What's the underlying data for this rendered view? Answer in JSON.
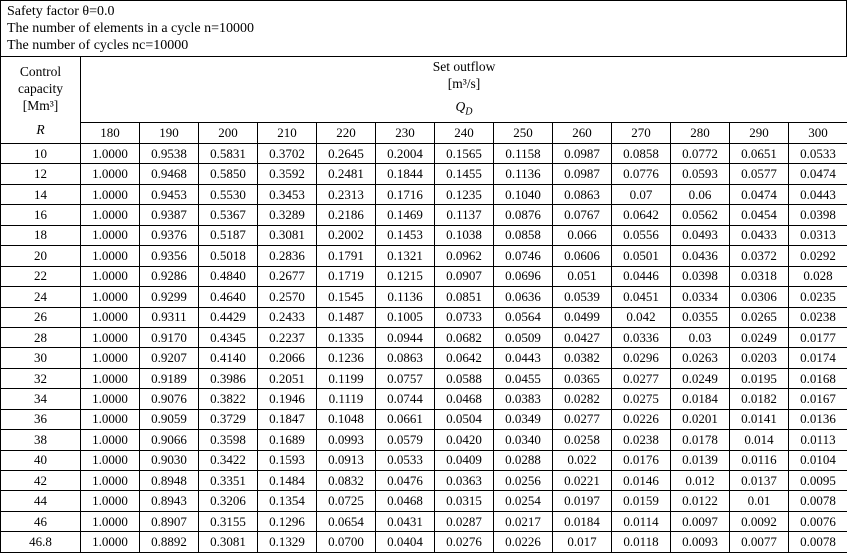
{
  "top": {
    "lines": [
      "Safety factor θ=0.0",
      "The number of elements in a cycle n=10000",
      "The number of cycles nc=10000"
    ]
  },
  "table": {
    "corner": {
      "lines": [
        "Control",
        "capacity",
        "[Mm³]"
      ],
      "symbol": "R"
    },
    "group_header": {
      "lines": [
        "Set outflow",
        "[m³/s]"
      ],
      "q": "Q",
      "q_sub": "D"
    },
    "columns": [
      "180",
      "190",
      "200",
      "210",
      "220",
      "230",
      "240",
      "250",
      "260",
      "270",
      "280",
      "290",
      "300"
    ],
    "rows": [
      {
        "R": "10",
        "values": [
          "1.0000",
          "0.9538",
          "0.5831",
          "0.3702",
          "0.2645",
          "0.2004",
          "0.1565",
          "0.1158",
          "0.0987",
          "0.0858",
          "0.0772",
          "0.0651",
          "0.0533"
        ]
      },
      {
        "R": "12",
        "values": [
          "1.0000",
          "0.9468",
          "0.5850",
          "0.3592",
          "0.2481",
          "0.1844",
          "0.1455",
          "0.1136",
          "0.0987",
          "0.0776",
          "0.0593",
          "0.0577",
          "0.0474"
        ]
      },
      {
        "R": "14",
        "values": [
          "1.0000",
          "0.9453",
          "0.5530",
          "0.3453",
          "0.2313",
          "0.1716",
          "0.1235",
          "0.1040",
          "0.0863",
          "0.07",
          "0.06",
          "0.0474",
          "0.0443"
        ]
      },
      {
        "R": "16",
        "values": [
          "1.0000",
          "0.9387",
          "0.5367",
          "0.3289",
          "0.2186",
          "0.1469",
          "0.1137",
          "0.0876",
          "0.0767",
          "0.0642",
          "0.0562",
          "0.0454",
          "0.0398"
        ]
      },
      {
        "R": "18",
        "values": [
          "1.0000",
          "0.9376",
          "0.5187",
          "0.3081",
          "0.2002",
          "0.1453",
          "0.1038",
          "0.0858",
          "0.066",
          "0.0556",
          "0.0493",
          "0.0433",
          "0.0313"
        ]
      },
      {
        "R": "20",
        "values": [
          "1.0000",
          "0.9356",
          "0.5018",
          "0.2836",
          "0.1791",
          "0.1321",
          "0.0962",
          "0.0746",
          "0.0606",
          "0.0501",
          "0.0436",
          "0.0372",
          "0.0292"
        ]
      },
      {
        "R": "22",
        "values": [
          "1.0000",
          "0.9286",
          "0.4840",
          "0.2677",
          "0.1719",
          "0.1215",
          "0.0907",
          "0.0696",
          "0.051",
          "0.0446",
          "0.0398",
          "0.0318",
          "0.028"
        ]
      },
      {
        "R": "24",
        "values": [
          "1.0000",
          "0.9299",
          "0.4640",
          "0.2570",
          "0.1545",
          "0.1136",
          "0.0851",
          "0.0636",
          "0.0539",
          "0.0451",
          "0.0334",
          "0.0306",
          "0.0235"
        ]
      },
      {
        "R": "26",
        "values": [
          "1.0000",
          "0.9311",
          "0.4429",
          "0.2433",
          "0.1487",
          "0.1005",
          "0.0733",
          "0.0564",
          "0.0499",
          "0.042",
          "0.0355",
          "0.0265",
          "0.0238"
        ]
      },
      {
        "R": "28",
        "values": [
          "1.0000",
          "0.9170",
          "0.4345",
          "0.2237",
          "0.1335",
          "0.0944",
          "0.0682",
          "0.0509",
          "0.0427",
          "0.0336",
          "0.03",
          "0.0249",
          "0.0177"
        ]
      },
      {
        "R": "30",
        "values": [
          "1.0000",
          "0.9207",
          "0.4140",
          "0.2066",
          "0.1236",
          "0.0863",
          "0.0642",
          "0.0443",
          "0.0382",
          "0.0296",
          "0.0263",
          "0.0203",
          "0.0174"
        ]
      },
      {
        "R": "32",
        "values": [
          "1.0000",
          "0.9189",
          "0.3986",
          "0.2051",
          "0.1199",
          "0.0757",
          "0.0588",
          "0.0455",
          "0.0365",
          "0.0277",
          "0.0249",
          "0.0195",
          "0.0168"
        ]
      },
      {
        "R": "34",
        "values": [
          "1.0000",
          "0.9076",
          "0.3822",
          "0.1946",
          "0.1119",
          "0.0744",
          "0.0468",
          "0.0383",
          "0.0282",
          "0.0275",
          "0.0184",
          "0.0182",
          "0.0167"
        ]
      },
      {
        "R": "36",
        "values": [
          "1.0000",
          "0.9059",
          "0.3729",
          "0.1847",
          "0.1048",
          "0.0661",
          "0.0504",
          "0.0349",
          "0.0277",
          "0.0226",
          "0.0201",
          "0.0141",
          "0.0136"
        ]
      },
      {
        "R": "38",
        "values": [
          "1.0000",
          "0.9066",
          "0.3598",
          "0.1689",
          "0.0993",
          "0.0579",
          "0.0420",
          "0.0340",
          "0.0258",
          "0.0238",
          "0.0178",
          "0.014",
          "0.0113"
        ]
      },
      {
        "R": "40",
        "values": [
          "1.0000",
          "0.9030",
          "0.3422",
          "0.1593",
          "0.0913",
          "0.0533",
          "0.0409",
          "0.0288",
          "0.022",
          "0.0176",
          "0.0139",
          "0.0116",
          "0.0104"
        ]
      },
      {
        "R": "42",
        "values": [
          "1.0000",
          "0.8948",
          "0.3351",
          "0.1484",
          "0.0832",
          "0.0476",
          "0.0363",
          "0.0256",
          "0.0221",
          "0.0146",
          "0.012",
          "0.0137",
          "0.0095"
        ]
      },
      {
        "R": "44",
        "values": [
          "1.0000",
          "0.8943",
          "0.3206",
          "0.1354",
          "0.0725",
          "0.0468",
          "0.0315",
          "0.0254",
          "0.0197",
          "0.0159",
          "0.0122",
          "0.01",
          "0.0078"
        ]
      },
      {
        "R": "46",
        "values": [
          "1.0000",
          "0.8907",
          "0.3155",
          "0.1296",
          "0.0654",
          "0.0431",
          "0.0287",
          "0.0217",
          "0.0184",
          "0.0114",
          "0.0097",
          "0.0092",
          "0.0076"
        ]
      },
      {
        "R": "46.8",
        "values": [
          "1.0000",
          "0.8892",
          "0.3081",
          "0.1329",
          "0.0700",
          "0.0404",
          "0.0276",
          "0.0226",
          "0.017",
          "0.0118",
          "0.0093",
          "0.0077",
          "0.0078"
        ]
      }
    ]
  }
}
